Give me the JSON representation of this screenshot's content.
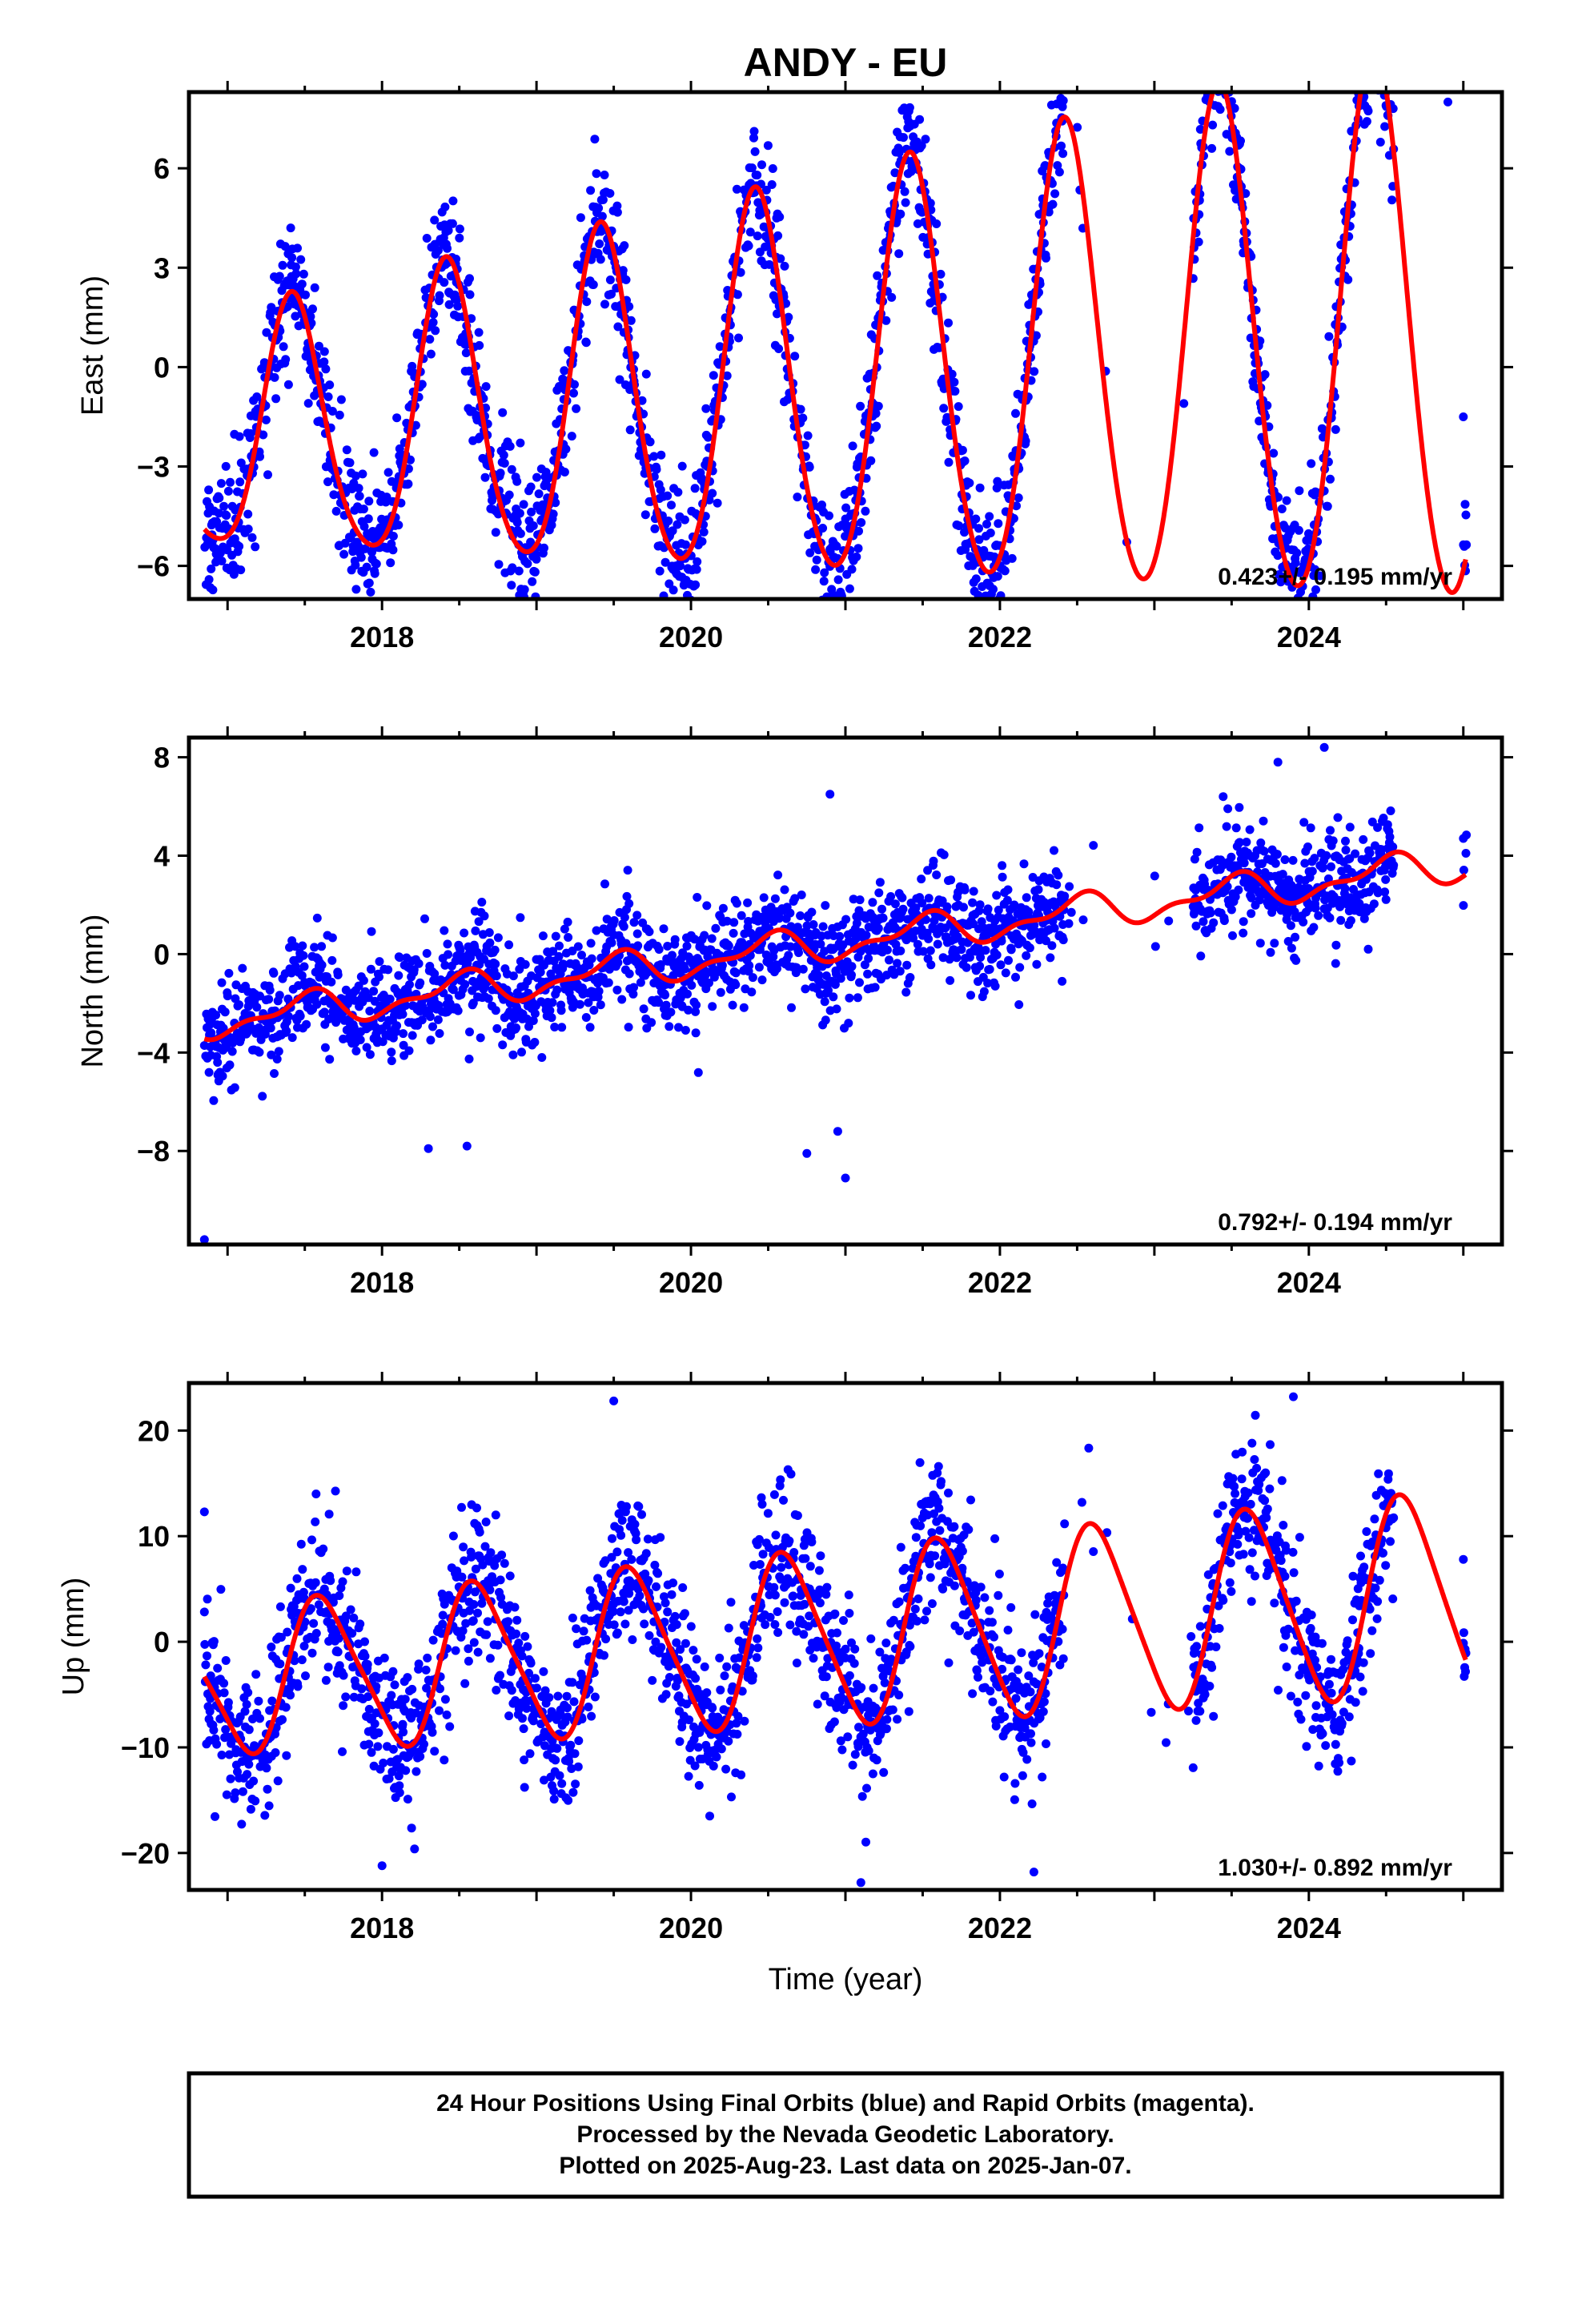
{
  "title": "ANDY - EU",
  "x_axis_label": "Time (year)",
  "footer": {
    "line1": "24 Hour Positions Using Final Orbits (blue) and Rapid Orbits (magenta).",
    "line2": "Processed by the Nevada Geodetic Laboratory.",
    "line3": "Plotted on 2025-Aug-23. Last data on 2025-Jan-07."
  },
  "colors": {
    "data_points": "#0000ff",
    "model_fit": "#ff0000",
    "frame": "#000000"
  },
  "chart_data": [
    {
      "type": "scatter",
      "component": "east",
      "ylabel": "East (mm)",
      "rate_text": "0.423+/- 0.195 mm/yr",
      "xlim": [
        2016.75,
        2025.25
      ],
      "ylim": [
        -7,
        8.3
      ],
      "xticks": [
        2018,
        2020,
        2022,
        2024
      ],
      "yticks": [
        -6,
        -3,
        0,
        3,
        6
      ],
      "model": {
        "offset": -0.5,
        "rate": 0.423,
        "t0": 2021,
        "annual_amp": 3.5,
        "annual_peak": 2017.42,
        "semi_amp": 0.55,
        "semi_peak": 2017.4,
        "amp_growth": 0.18
      },
      "scatter": {
        "noise": 1.0,
        "outliers": [
          [
            2016.9,
            -5.3
          ],
          [
            2018.9,
            -6.7
          ],
          [
            2019.93,
            -6.0
          ],
          [
            2020.9,
            -5.5
          ],
          [
            2024.9,
            8.0
          ],
          [
            2025.0,
            -1.5
          ]
        ]
      },
      "grid": false
    },
    {
      "type": "scatter",
      "component": "north",
      "ylabel": "North (mm)",
      "rate_text": "0.792+/- 0.194 mm/yr",
      "xlim": [
        2016.75,
        2025.25
      ],
      "ylim": [
        -11.8,
        8.8
      ],
      "xticks": [
        2018,
        2020,
        2022,
        2024
      ],
      "yticks": [
        -8,
        -4,
        0,
        4,
        8
      ],
      "model": {
        "offset": 0.5,
        "rate": 0.792,
        "t0": 2021,
        "annual_amp": 0.6,
        "annual_peak": 2017.5,
        "semi_amp": 0.3,
        "semi_peak": 2017.1,
        "amp_growth": 0.0
      },
      "scatter": {
        "noise": 1.05,
        "outliers": [
          [
            2016.85,
            -11.6
          ],
          [
            2018.3,
            -7.9
          ],
          [
            2018.55,
            -7.8
          ],
          [
            2020.9,
            6.5
          ],
          [
            2020.95,
            -7.2
          ],
          [
            2021.0,
            -9.1
          ],
          [
            2020.75,
            -8.1
          ],
          [
            2024.1,
            8.4
          ],
          [
            2023.8,
            7.8
          ],
          [
            2025.0,
            4.7
          ]
        ]
      },
      "grid": false
    },
    {
      "type": "scatter",
      "component": "up",
      "ylabel": "Up (mm)",
      "rate_text": "1.030+/- 0.892 mm/yr",
      "xlim": [
        2016.75,
        2025.25
      ],
      "ylim": [
        -23.5,
        24.5
      ],
      "xticks": [
        2018,
        2020,
        2022,
        2024
      ],
      "yticks": [
        -20,
        -10,
        0,
        10,
        20
      ],
      "model": {
        "offset": 0.5,
        "rate": 1.03,
        "t0": 2021,
        "annual_amp": 6.8,
        "annual_peak": 2017.62,
        "semi_amp": 1.2,
        "semi_peak": 2017.5,
        "amp_growth": 0.05
      },
      "scatter": {
        "noise": 3.6,
        "outliers": [
          [
            2019.5,
            22.8
          ],
          [
            2023.9,
            23.2
          ],
          [
            2021.1,
            -22.8
          ],
          [
            2022.22,
            -21.8
          ],
          [
            2018.0,
            -21.2
          ],
          [
            2016.85,
            12.3
          ],
          [
            2025.0,
            7.8
          ]
        ]
      },
      "grid": false
    }
  ]
}
